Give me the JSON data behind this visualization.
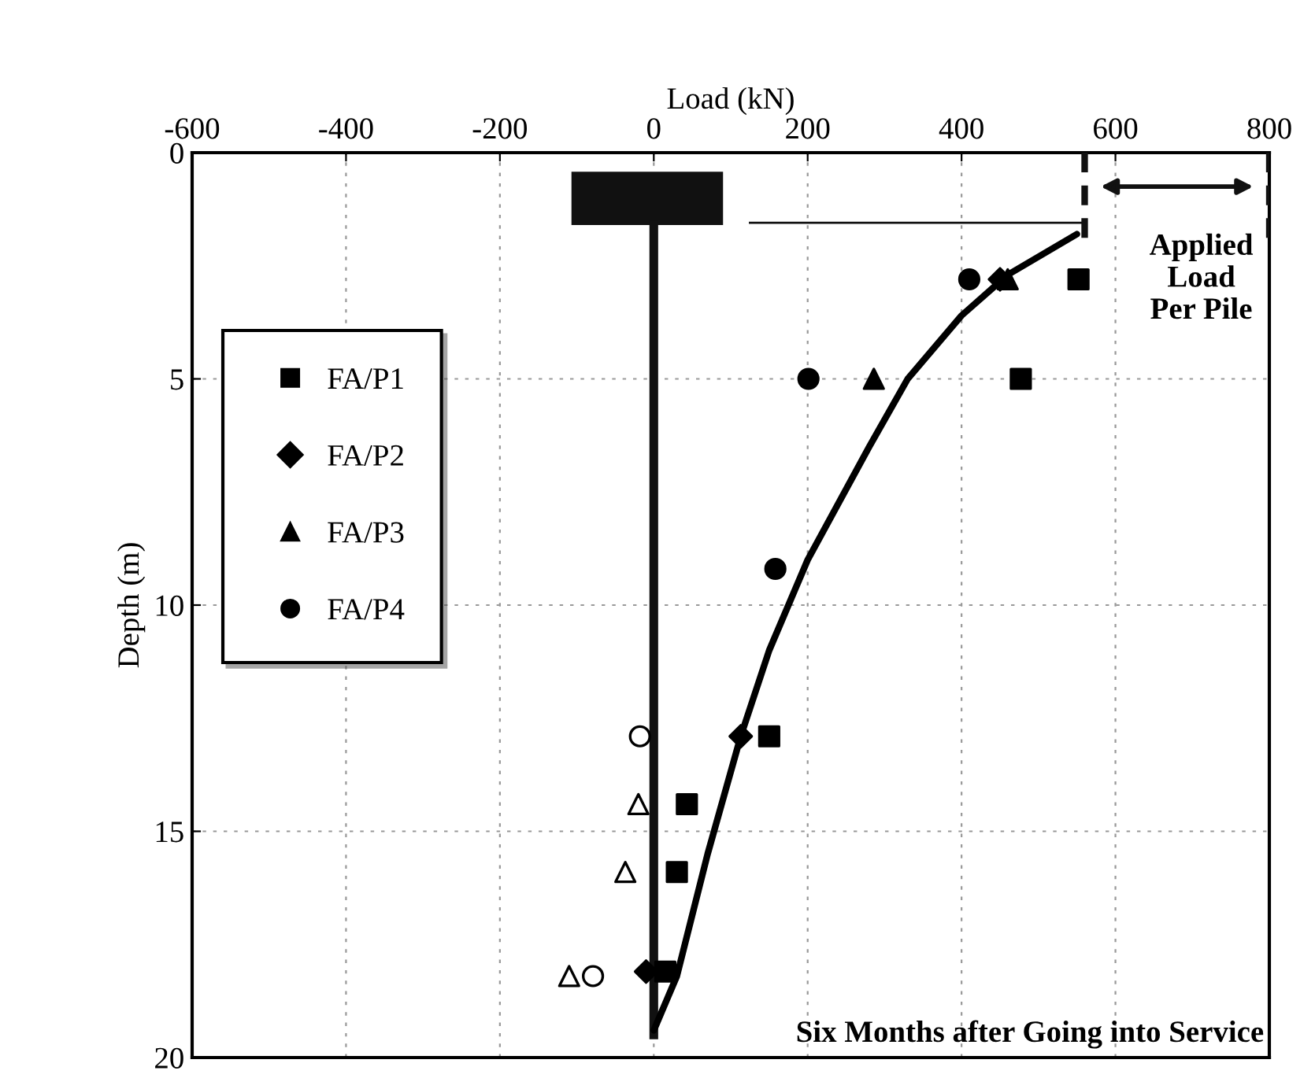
{
  "chart_data": {
    "type": "scatter",
    "xlabel": "Load (kN)",
    "ylabel": "Depth (m)",
    "xlim": [
      -600,
      800
    ],
    "xticks": [
      -600,
      -400,
      -200,
      0,
      200,
      400,
      600,
      800
    ],
    "ylim": [
      20,
      0
    ],
    "yticks": [
      0,
      5,
      10,
      15,
      20
    ],
    "grid": true,
    "legend": "left",
    "series": [
      {
        "name": "FA/P1",
        "color": "#000000",
        "marker": "square",
        "x": [
          552,
          477,
          150,
          43,
          30,
          15
        ],
        "values": [
          2.8,
          5.0,
          12.9,
          14.4,
          15.9,
          18.1
        ]
      },
      {
        "name": "FA/P2",
        "color": "#000000",
        "marker": "diamond",
        "x": [
          450,
          113,
          -10
        ],
        "values": [
          2.8,
          12.9,
          18.1
        ]
      },
      {
        "name": "FA/P3",
        "color": "#000000",
        "marker": "triangle",
        "x": [
          460,
          286
        ],
        "values": [
          2.8,
          5.0
        ]
      },
      {
        "name": "FA/P4",
        "color": "#000000",
        "marker": "circle",
        "x": [
          410,
          201,
          158
        ],
        "values": [
          2.8,
          5.0,
          9.2
        ]
      },
      {
        "color": "#ffffff",
        "marker": "triangle",
        "x": [
          -20,
          -37,
          -110
        ],
        "values": [
          14.4,
          15.9,
          18.2
        ]
      },
      {
        "color": "#ffffff",
        "marker": "circle",
        "x": [
          -18,
          -79
        ],
        "values": [
          12.9,
          18.2
        ]
      },
      {
        "type": "line",
        "color": "#000000",
        "marker": "none",
        "x": [
          0,
          30,
          70,
          113,
          150,
          200,
          280,
          330,
          400,
          460,
          510,
          550
        ],
        "values": [
          19.4,
          18.2,
          15.5,
          12.9,
          11.0,
          9.0,
          6.5,
          5.0,
          3.6,
          2.7,
          2.2,
          1.8
        ]
      }
    ],
    "annotations": [
      "Applied Load Per Pile",
      "Six Months after Going into Service"
    ]
  }
}
